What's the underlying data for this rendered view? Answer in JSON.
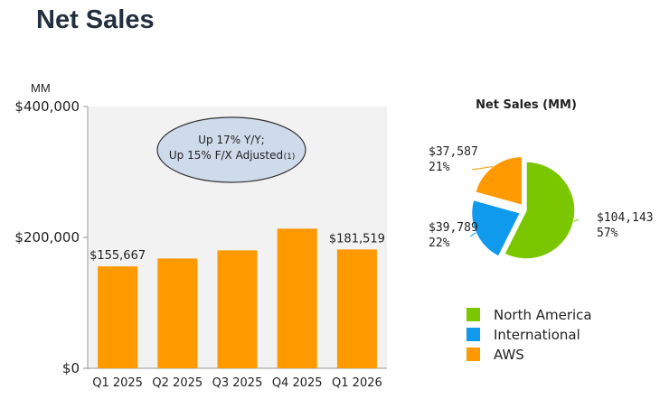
{
  "header": {
    "title": "Net Sales"
  },
  "chart_data": [
    {
      "type": "bar",
      "unit_label": "MM",
      "categories": [
        "Q1 2025",
        "Q2 2025",
        "Q3 2025",
        "Q4 2025",
        "Q1 2026"
      ],
      "values": [
        155667,
        167702,
        180169,
        213386,
        181519
      ],
      "data_labels": {
        "0": "$155,667",
        "4": "$181,519"
      },
      "ylim": [
        0,
        400000
      ],
      "yticks": [
        {
          "value": 0,
          "label": "$0"
        },
        {
          "value": 200000,
          "label": "$200,000"
        },
        {
          "value": 400000,
          "label": "$400,000"
        }
      ],
      "bar_color": "#ff9900",
      "background_color": "#f2f2f2",
      "grid": false,
      "annotation": {
        "line1": "Up 17% Y/Y;",
        "line2": "Up 15% F/X Adjusted",
        "footnote": "(1)"
      }
    },
    {
      "type": "pie",
      "title": "Net Sales (MM)",
      "legend_position": "bottom",
      "slices": [
        {
          "name": "North America",
          "value": 104143,
          "value_label": "$104,143",
          "pct_label": "57%",
          "color": "#7ac700",
          "exploded": false
        },
        {
          "name": "International",
          "value": 39789,
          "value_label": "$39,789",
          "pct_label": "22%",
          "color": "#0f9aee",
          "exploded": true
        },
        {
          "name": "AWS",
          "value": 37587,
          "value_label": "$37,587",
          "pct_label": "21%",
          "color": "#ff9900",
          "exploded": true
        }
      ]
    }
  ]
}
